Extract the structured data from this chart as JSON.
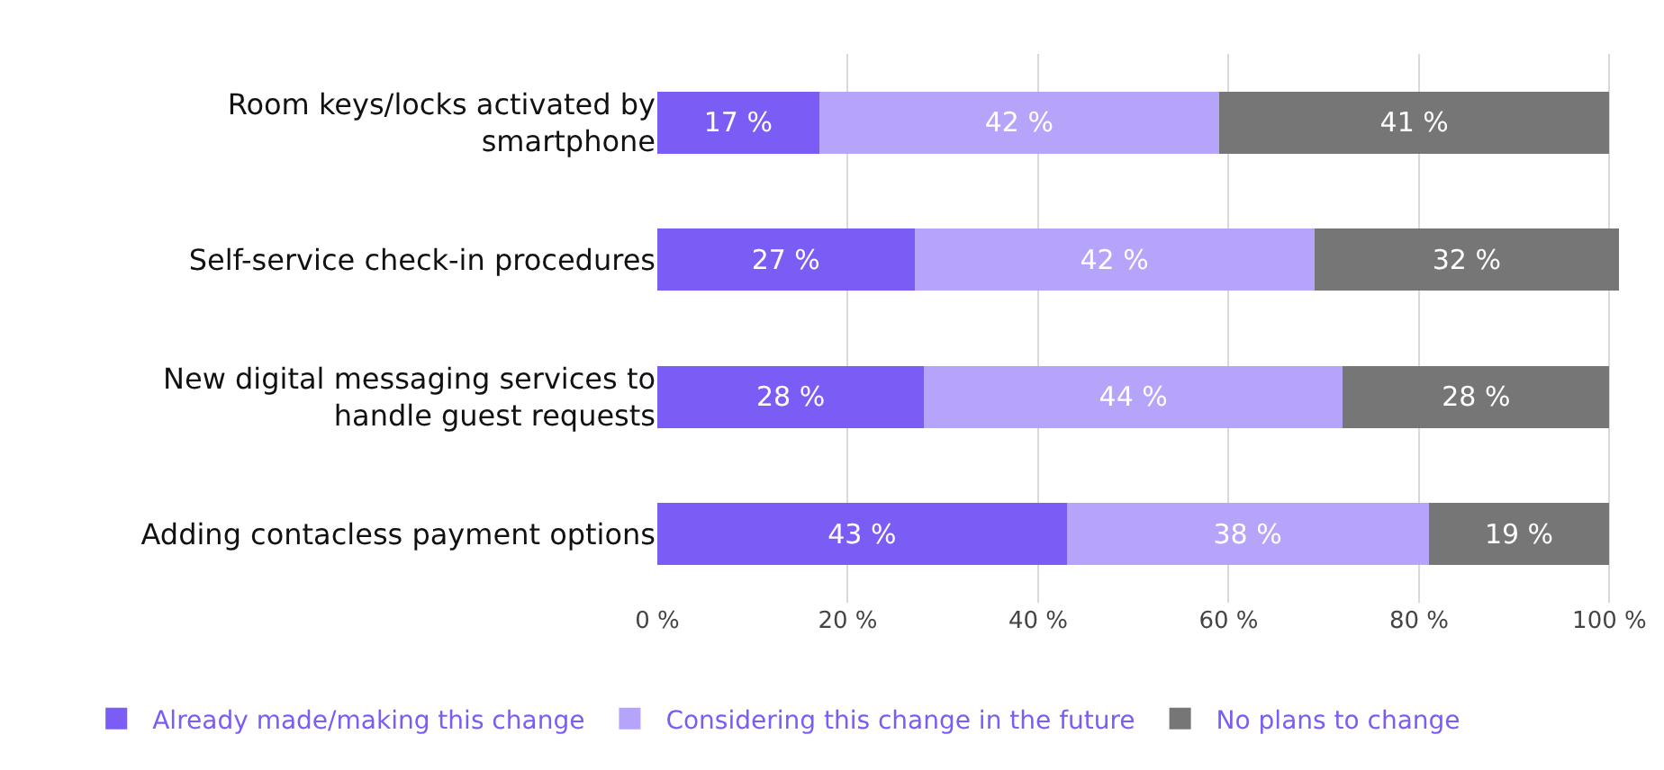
{
  "chart_data": {
    "type": "bar",
    "orientation": "horizontal",
    "stacked": true,
    "categories": [
      "Room keys/locks activated by smartphone",
      "Self-service check-in procedures",
      "New digital messaging services to handle guest requests",
      "Adding contacless payment options"
    ],
    "series": [
      {
        "name": "Already made/making this change",
        "color": "#7b5cf5",
        "values": [
          17,
          27,
          28,
          43
        ],
        "value_labels": [
          "17 %",
          "27 %",
          "28 %",
          "43 %"
        ]
      },
      {
        "name": "Considering this change in the future",
        "color": "#b6a4fb",
        "values": [
          42,
          42,
          44,
          38
        ],
        "value_labels": [
          "42 %",
          "42 %",
          "44 %",
          "38 %"
        ]
      },
      {
        "name": "No plans to change",
        "color": "#767676",
        "values": [
          41,
          32,
          28,
          19
        ],
        "value_labels": [
          "41 %",
          "32 %",
          "28 %",
          "19 %"
        ]
      }
    ],
    "xlim": [
      0,
      101
    ],
    "xticks": [
      {
        "value": 0,
        "label": "0 %"
      },
      {
        "value": 20,
        "label": "20 %"
      },
      {
        "value": 40,
        "label": "40 %"
      },
      {
        "value": 60,
        "label": "60 %"
      },
      {
        "value": 80,
        "label": "80 %"
      },
      {
        "value": 100,
        "label": "100 %"
      }
    ],
    "grid": "x",
    "legend": "bottom"
  }
}
